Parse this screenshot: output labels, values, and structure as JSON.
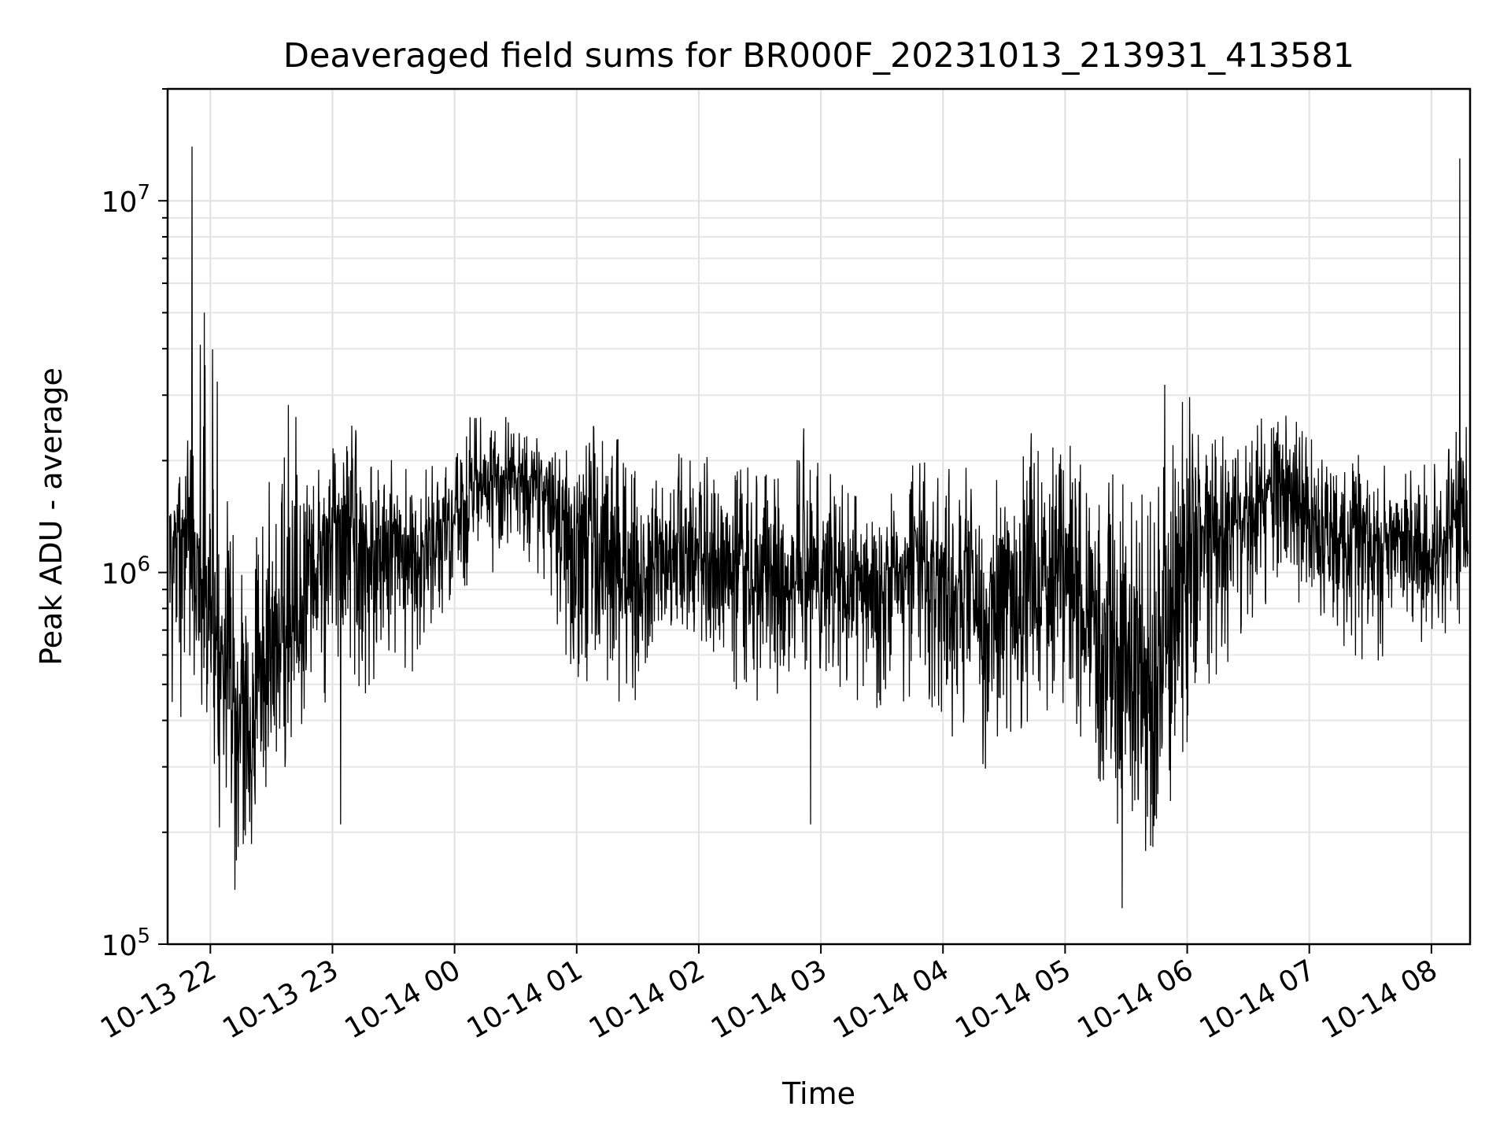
{
  "chart_data": {
    "type": "line",
    "title": "Deaveraged field sums for BR000F_20231013_213931_413581",
    "xlabel": "Time",
    "ylabel": "Peak ADU - average",
    "yscale": "log",
    "ylim": [
      100000,
      20000000
    ],
    "xlim": [
      "2023-10-13 21:39",
      "2023-10-14 08:19"
    ],
    "grid": true,
    "x_ticks": [
      {
        "value": "2023-10-13 22:00",
        "label": "10-13 22"
      },
      {
        "value": "2023-10-13 23:00",
        "label": "10-13 23"
      },
      {
        "value": "2023-10-14 00:00",
        "label": "10-14 00"
      },
      {
        "value": "2023-10-14 01:00",
        "label": "10-14 01"
      },
      {
        "value": "2023-10-14 02:00",
        "label": "10-14 02"
      },
      {
        "value": "2023-10-14 03:00",
        "label": "10-14 03"
      },
      {
        "value": "2023-10-14 04:00",
        "label": "10-14 04"
      },
      {
        "value": "2023-10-14 05:00",
        "label": "10-14 05"
      },
      {
        "value": "2023-10-14 06:00",
        "label": "10-14 06"
      },
      {
        "value": "2023-10-14 07:00",
        "label": "10-14 07"
      },
      {
        "value": "2023-10-14 08:00",
        "label": "10-14 08"
      }
    ],
    "y_ticks": [
      {
        "value": 100000,
        "base": "10",
        "exp": "5"
      },
      {
        "value": 1000000,
        "base": "10",
        "exp": "6"
      },
      {
        "value": 10000000,
        "base": "10",
        "exp": "7"
      }
    ],
    "series": [
      {
        "color": "#000000",
        "x": [
          "2023-10-13 21:40",
          "2023-10-13 21:50",
          "2023-10-13 22:00",
          "2023-10-13 22:10",
          "2023-10-13 22:20",
          "2023-10-13 22:30",
          "2023-10-13 22:40",
          "2023-10-13 22:50",
          "2023-10-13 23:00",
          "2023-10-13 23:10",
          "2023-10-13 23:20",
          "2023-10-13 23:30",
          "2023-10-13 23:40",
          "2023-10-13 23:50",
          "2023-10-14 00:00",
          "2023-10-14 00:10",
          "2023-10-14 00:20",
          "2023-10-14 00:30",
          "2023-10-14 00:40",
          "2023-10-14 00:50",
          "2023-10-14 01:00",
          "2023-10-14 01:10",
          "2023-10-14 01:20",
          "2023-10-14 01:30",
          "2023-10-14 01:40",
          "2023-10-14 01:50",
          "2023-10-14 02:00",
          "2023-10-14 02:10",
          "2023-10-14 02:20",
          "2023-10-14 02:30",
          "2023-10-14 02:40",
          "2023-10-14 02:50",
          "2023-10-14 03:00",
          "2023-10-14 03:10",
          "2023-10-14 03:20",
          "2023-10-14 03:30",
          "2023-10-14 03:40",
          "2023-10-14 03:50",
          "2023-10-14 04:00",
          "2023-10-14 04:10",
          "2023-10-14 04:20",
          "2023-10-14 04:30",
          "2023-10-14 04:40",
          "2023-10-14 04:50",
          "2023-10-14 05:00",
          "2023-10-14 05:10",
          "2023-10-14 05:20",
          "2023-10-14 05:30",
          "2023-10-14 05:40",
          "2023-10-14 05:50",
          "2023-10-14 06:00",
          "2023-10-14 06:10",
          "2023-10-14 06:20",
          "2023-10-14 06:30",
          "2023-10-14 06:40",
          "2023-10-14 06:50",
          "2023-10-14 07:00",
          "2023-10-14 07:10",
          "2023-10-14 07:20",
          "2023-10-14 07:30",
          "2023-10-14 07:40",
          "2023-10-14 07:50",
          "2023-10-14 08:00",
          "2023-10-14 08:10",
          "2023-10-14 08:18"
        ],
        "values": [
          1200000,
          1300000,
          800000,
          500000,
          400000,
          600000,
          700000,
          1000000,
          1300000,
          1400000,
          1100000,
          1200000,
          1100000,
          1150000,
          1400000,
          1600000,
          1750000,
          1800000,
          1700000,
          1500000,
          1300000,
          1100000,
          1000000,
          950000,
          1000000,
          1100000,
          1150000,
          1050000,
          1100000,
          1000000,
          900000,
          1000000,
          1050000,
          950000,
          900000,
          950000,
          1000000,
          1000000,
          900000,
          850000,
          750000,
          800000,
          900000,
          900000,
          1000000,
          800000,
          600000,
          550000,
          500000,
          650000,
          1100000,
          1300000,
          1300000,
          1400000,
          1700000,
          1800000,
          1400000,
          1200000,
          1200000,
          1150000,
          1200000,
          1200000,
          1100000,
          1300000,
          1500000
        ],
        "high_envelope": [
          2100000,
          2300000,
          5200000,
          1400000,
          1400000,
          1800000,
          3100000,
          2100000,
          2300000,
          2600000,
          2000000,
          2100000,
          1900000,
          2000000,
          2200000,
          2800000,
          3000000,
          2600000,
          2400000,
          2200000,
          2100000,
          2900000,
          2600000,
          1800000,
          2000000,
          2200000,
          2200000,
          2000000,
          2100000,
          2200000,
          1900000,
          2600000,
          2300000,
          2000000,
          1700000,
          1800000,
          1900000,
          2100000,
          2000000,
          1900000,
          2000000,
          2200000,
          2700000,
          2400000,
          2800000,
          2400000,
          2100000,
          2300000,
          2200000,
          2600000,
          3100000,
          2400000,
          2300000,
          2500000,
          2800000,
          3000000,
          2700000,
          2300000,
          2200000,
          2100000,
          2100000,
          2000000,
          2200000,
          2400000,
          2600000
        ],
        "low_envelope": [
          380000,
          320000,
          240000,
          170000,
          150000,
          220000,
          300000,
          400000,
          450000,
          420000,
          500000,
          450000,
          520000,
          700000,
          850000,
          950000,
          1000000,
          1050000,
          1000000,
          700000,
          500000,
          450000,
          380000,
          420000,
          550000,
          600000,
          650000,
          500000,
          450000,
          430000,
          420000,
          500000,
          480000,
          420000,
          380000,
          400000,
          450000,
          430000,
          380000,
          330000,
          290000,
          300000,
          350000,
          360000,
          400000,
          350000,
          230000,
          180000,
          150000,
          180000,
          260000,
          380000,
          480000,
          600000,
          800000,
          900000,
          750000,
          650000,
          600000,
          550000,
          620000,
          640000,
          600000,
          650000,
          700000
        ],
        "spikes": [
          {
            "x": "2023-10-13 21:51",
            "y": 14000000
          },
          {
            "x": "2023-10-13 21:57",
            "y": 5000000
          },
          {
            "x": "2023-10-13 21:55",
            "y": 4100000
          },
          {
            "x": "2023-10-14 05:49",
            "y": 3200000
          },
          {
            "x": "2023-10-14 08:14",
            "y": 13000000
          },
          {
            "x": "2023-10-14 05:28",
            "y": 125000
          },
          {
            "x": "2023-10-13 22:12",
            "y": 140000
          },
          {
            "x": "2023-10-14 02:55",
            "y": 210000
          },
          {
            "x": "2023-10-13 23:04",
            "y": 210000
          }
        ]
      }
    ]
  }
}
